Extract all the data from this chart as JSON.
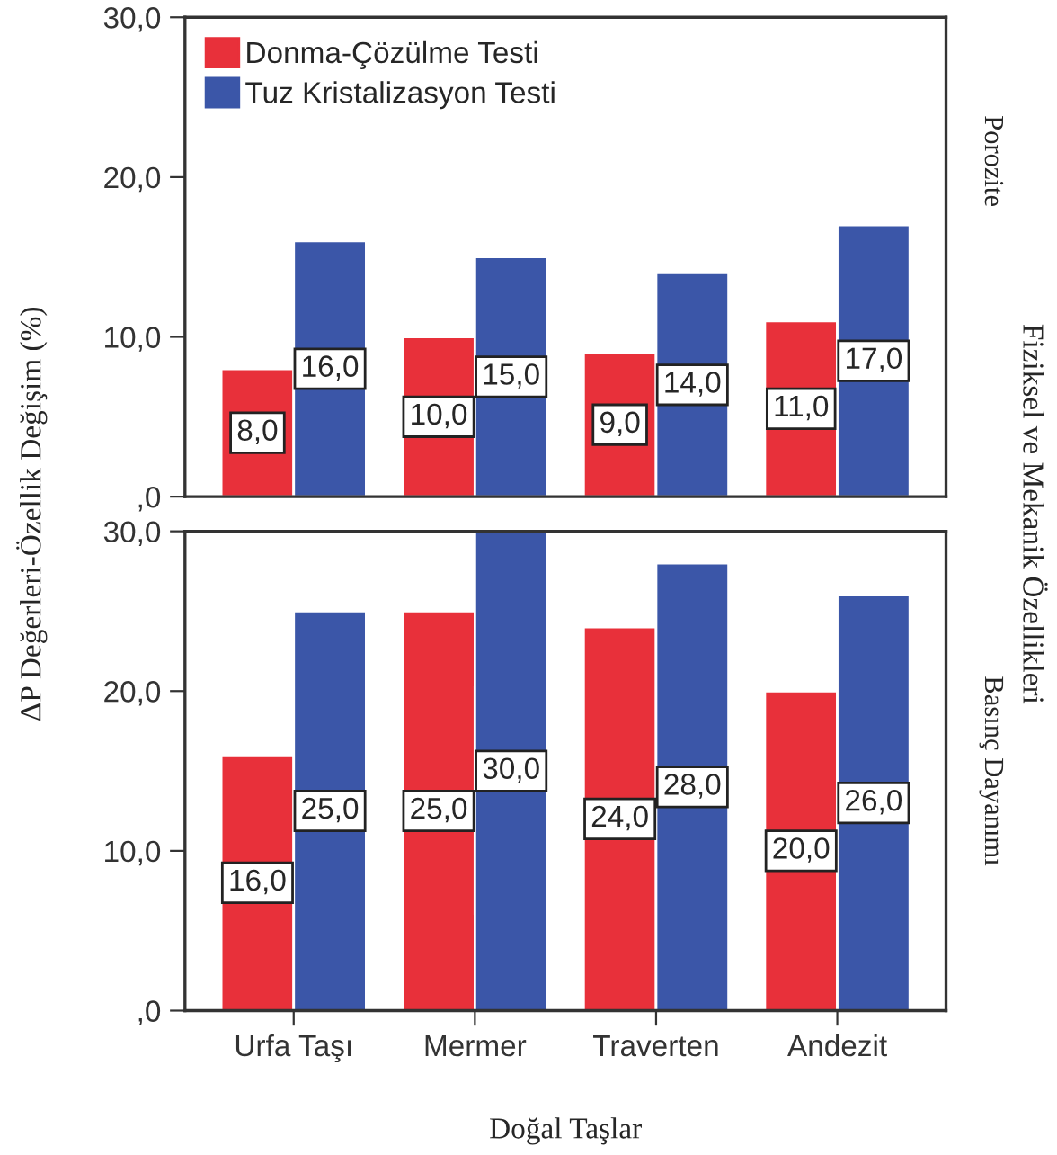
{
  "chart_data": [
    {
      "type": "bar",
      "categories": [
        null,
        null,
        null,
        null
      ],
      "ylabel": "ΔP Değerleri-Özellik Değişim (%)",
      "annotations": [
        "Porozite",
        "Fiziksel ve Mekanik Özellikleri"
      ],
      "ylim": [
        0,
        30
      ],
      "yticks": [
        {
          "value": 0,
          "label": ",0"
        },
        {
          "value": 10,
          "label": "10,0"
        },
        {
          "value": 20,
          "label": "20,0"
        },
        {
          "value": 30,
          "label": "30,0"
        }
      ],
      "tick_labels": "y",
      "legend": "top left",
      "series": [
        {
          "name": "Donma-Çözülme Testi",
          "color": "#e8303a",
          "values": [
            8,
            10,
            9,
            11
          ],
          "value_labels": [
            "8,0",
            "10,0",
            "9,0",
            "11,0"
          ]
        },
        {
          "name": "Tuz Kristalizasyon Testi",
          "color": "#3b56a8",
          "values": [
            16,
            15,
            14,
            17
          ],
          "value_labels": [
            "16,0",
            "15,0",
            "14,0",
            "17,0"
          ]
        }
      ]
    },
    {
      "type": "bar",
      "categories": [
        "Urfa Taşı",
        "Mermer",
        "Traverten",
        "Andezit"
      ],
      "xlabel": "Doğal Taşlar",
      "annotations": [
        "Basınç Dayanımı"
      ],
      "ylim": [
        0,
        30
      ],
      "yticks": [
        {
          "value": 0,
          "label": ",0"
        },
        {
          "value": 10,
          "label": "10,0"
        },
        {
          "value": 20,
          "label": "20,0"
        },
        {
          "value": 30,
          "label": "30,0"
        }
      ],
      "series": [
        {
          "color": "#e8303a",
          "values": [
            16,
            25,
            24,
            20
          ],
          "value_labels": [
            "16,0",
            "25,0",
            "24,0",
            "20,0"
          ]
        },
        {
          "color": "#3b56a8",
          "values": [
            25,
            30,
            28,
            26
          ],
          "value_labels": [
            "25,0",
            "30,0",
            "28,0",
            "26,0"
          ]
        }
      ]
    }
  ]
}
